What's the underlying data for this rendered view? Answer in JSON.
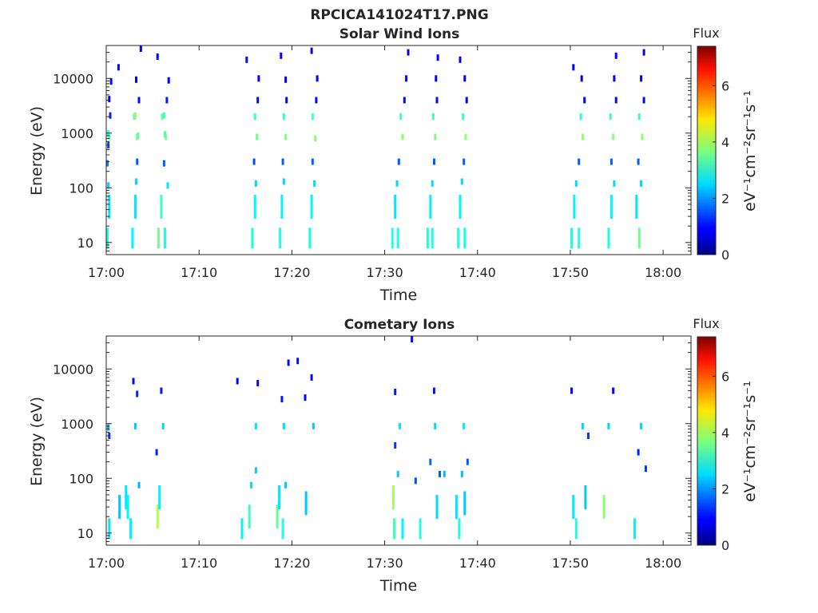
{
  "figure": {
    "main_title": "RPCICA141024T17.PNG"
  },
  "panels": [
    {
      "title": "Solar Wind Ions",
      "xlabel": "Time",
      "ylabel": "Energy (eV)",
      "colorbar_title": "Flux",
      "colorbar_unit": "eV⁻¹cm⁻²sr⁻¹s⁻¹"
    },
    {
      "title": "Cometary Ions",
      "xlabel": "Time",
      "ylabel": "Energy (eV)",
      "colorbar_title": "Flux",
      "colorbar_unit": "eV⁻¹cm⁻²sr⁻¹s⁻¹"
    }
  ],
  "chart_data": [
    {
      "type": "heatmap",
      "title": "Solar Wind Ions",
      "xlabel": "Time",
      "ylabel": "Energy (eV)",
      "x_range_minutes_after_1700": [
        0,
        63
      ],
      "y_range_eV": [
        6,
        40000
      ],
      "y_scale": "log",
      "x_ticks": [
        "17:00",
        "17:10",
        "17:20",
        "17:30",
        "17:40",
        "17:50",
        "18:00"
      ],
      "y_ticks": [
        "10",
        "100",
        "1000",
        "10000"
      ],
      "colorbar": {
        "label": "Flux",
        "unit": "eV⁻¹cm⁻²sr⁻¹s⁻¹",
        "range": [
          0,
          7.4
        ],
        "ticks": [
          "0",
          "2",
          "4",
          "6"
        ],
        "colormap": "jet"
      },
      "grid": false,
      "cells": [
        {
          "t": 0.0,
          "e": 12,
          "v": 3.0
        },
        {
          "t": 0.2,
          "e": 45,
          "v": 2.6
        },
        {
          "t": 0.1,
          "e": 110,
          "v": 2.4
        },
        {
          "t": 0.0,
          "e": 280,
          "v": 1.8
        },
        {
          "t": 0.1,
          "e": 600,
          "v": 1.5
        },
        {
          "t": 0.2,
          "e": 850,
          "v": 3.4
        },
        {
          "t": 0.1,
          "e": 1000,
          "v": 3.0
        },
        {
          "t": 0.3,
          "e": 2100,
          "v": 1.2
        },
        {
          "t": 0.2,
          "e": 4200,
          "v": 1.0
        },
        {
          "t": 0.4,
          "e": 8800,
          "v": 0.9
        },
        {
          "t": 1.2,
          "e": 16000,
          "v": 0.9
        },
        {
          "t": 2.7,
          "e": 12,
          "v": 2.7
        },
        {
          "t": 3.0,
          "e": 45,
          "v": 2.6
        },
        {
          "t": 3.1,
          "e": 130,
          "v": 2.5
        },
        {
          "t": 3.2,
          "e": 300,
          "v": 1.6
        },
        {
          "t": 3.2,
          "e": 850,
          "v": 3.6
        },
        {
          "t": 3.3,
          "e": 900,
          "v": 3.5
        },
        {
          "t": 2.9,
          "e": 2000,
          "v": 3.3
        },
        {
          "t": 3.0,
          "e": 2100,
          "v": 3.8
        },
        {
          "t": 3.4,
          "e": 4000,
          "v": 1.0
        },
        {
          "t": 3.1,
          "e": 9500,
          "v": 0.9
        },
        {
          "t": 3.6,
          "e": 35000,
          "v": 0.9
        },
        {
          "t": 5.5,
          "e": 12,
          "v": 3.6
        },
        {
          "t": 6.2,
          "e": 12,
          "v": 3.0
        },
        {
          "t": 5.8,
          "e": 45,
          "v": 3.2
        },
        {
          "t": 6.5,
          "e": 110,
          "v": 2.6
        },
        {
          "t": 6.1,
          "e": 280,
          "v": 1.6
        },
        {
          "t": 6.3,
          "e": 850,
          "v": 3.7
        },
        {
          "t": 6.2,
          "e": 950,
          "v": 3.4
        },
        {
          "t": 5.9,
          "e": 2000,
          "v": 3.5
        },
        {
          "t": 6.1,
          "e": 2100,
          "v": 3.2
        },
        {
          "t": 6.4,
          "e": 4000,
          "v": 1.1
        },
        {
          "t": 6.6,
          "e": 9200,
          "v": 0.9
        },
        {
          "t": 5.4,
          "e": 25000,
          "v": 1.0
        },
        {
          "t": 15.6,
          "e": 12,
          "v": 3.0
        },
        {
          "t": 15.9,
          "e": 45,
          "v": 2.7
        },
        {
          "t": 16.0,
          "e": 120,
          "v": 2.5
        },
        {
          "t": 15.8,
          "e": 300,
          "v": 1.5
        },
        {
          "t": 16.1,
          "e": 850,
          "v": 3.6
        },
        {
          "t": 15.9,
          "e": 2000,
          "v": 3.2
        },
        {
          "t": 16.2,
          "e": 4000,
          "v": 1.0
        },
        {
          "t": 16.3,
          "e": 10000,
          "v": 0.9
        },
        {
          "t": 15.0,
          "e": 22000,
          "v": 1.0
        },
        {
          "t": 18.6,
          "e": 12,
          "v": 3.0
        },
        {
          "t": 18.8,
          "e": 45,
          "v": 2.7
        },
        {
          "t": 19.0,
          "e": 130,
          "v": 2.5
        },
        {
          "t": 18.9,
          "e": 300,
          "v": 1.6
        },
        {
          "t": 19.2,
          "e": 850,
          "v": 3.7
        },
        {
          "t": 19.0,
          "e": 2000,
          "v": 3.1
        },
        {
          "t": 19.3,
          "e": 4000,
          "v": 1.0
        },
        {
          "t": 19.2,
          "e": 9500,
          "v": 0.9
        },
        {
          "t": 18.7,
          "e": 26000,
          "v": 0.9
        },
        {
          "t": 21.8,
          "e": 12,
          "v": 2.9
        },
        {
          "t": 22.0,
          "e": 45,
          "v": 2.7
        },
        {
          "t": 22.3,
          "e": 120,
          "v": 2.5
        },
        {
          "t": 22.1,
          "e": 300,
          "v": 1.6
        },
        {
          "t": 22.4,
          "e": 800,
          "v": 3.8
        },
        {
          "t": 22.1,
          "e": 2000,
          "v": 3.2
        },
        {
          "t": 22.5,
          "e": 4000,
          "v": 1.0
        },
        {
          "t": 22.6,
          "e": 10000,
          "v": 0.9
        },
        {
          "t": 22.0,
          "e": 32000,
          "v": 0.9
        },
        {
          "t": 30.7,
          "e": 12,
          "v": 3.0
        },
        {
          "t": 31.3,
          "e": 12,
          "v": 3.0
        },
        {
          "t": 31.0,
          "e": 45,
          "v": 2.6
        },
        {
          "t": 31.2,
          "e": 120,
          "v": 2.5
        },
        {
          "t": 31.4,
          "e": 300,
          "v": 1.6
        },
        {
          "t": 31.8,
          "e": 850,
          "v": 3.8
        },
        {
          "t": 31.6,
          "e": 2000,
          "v": 3.2
        },
        {
          "t": 32.0,
          "e": 4000,
          "v": 1.0
        },
        {
          "t": 32.2,
          "e": 10000,
          "v": 0.9
        },
        {
          "t": 32.4,
          "e": 30000,
          "v": 0.9
        },
        {
          "t": 34.5,
          "e": 12,
          "v": 3.0
        },
        {
          "t": 35.0,
          "e": 12,
          "v": 3.0
        },
        {
          "t": 34.8,
          "e": 45,
          "v": 2.7
        },
        {
          "t": 35.0,
          "e": 120,
          "v": 2.5
        },
        {
          "t": 35.2,
          "e": 300,
          "v": 1.6
        },
        {
          "t": 35.3,
          "e": 850,
          "v": 3.7
        },
        {
          "t": 35.1,
          "e": 2000,
          "v": 3.2
        },
        {
          "t": 35.5,
          "e": 4000,
          "v": 1.0
        },
        {
          "t": 35.4,
          "e": 10000,
          "v": 0.9
        },
        {
          "t": 35.6,
          "e": 24000,
          "v": 0.9
        },
        {
          "t": 37.8,
          "e": 12,
          "v": 3.0
        },
        {
          "t": 38.5,
          "e": 12,
          "v": 2.9
        },
        {
          "t": 38.0,
          "e": 45,
          "v": 2.7
        },
        {
          "t": 38.2,
          "e": 130,
          "v": 2.5
        },
        {
          "t": 38.4,
          "e": 300,
          "v": 1.6
        },
        {
          "t": 38.6,
          "e": 850,
          "v": 3.8
        },
        {
          "t": 38.3,
          "e": 2000,
          "v": 3.2
        },
        {
          "t": 38.7,
          "e": 4000,
          "v": 1.0
        },
        {
          "t": 38.5,
          "e": 10000,
          "v": 0.9
        },
        {
          "t": 38.0,
          "e": 22000,
          "v": 0.9
        },
        {
          "t": 50.0,
          "e": 12,
          "v": 3.0
        },
        {
          "t": 50.8,
          "e": 12,
          "v": 3.0
        },
        {
          "t": 50.3,
          "e": 45,
          "v": 2.7
        },
        {
          "t": 50.5,
          "e": 120,
          "v": 2.5
        },
        {
          "t": 50.8,
          "e": 300,
          "v": 1.6
        },
        {
          "t": 51.2,
          "e": 850,
          "v": 3.8
        },
        {
          "t": 51.0,
          "e": 2000,
          "v": 3.1
        },
        {
          "t": 51.4,
          "e": 4000,
          "v": 1.0
        },
        {
          "t": 51.1,
          "e": 10000,
          "v": 0.9
        },
        {
          "t": 50.2,
          "e": 16000,
          "v": 0.9
        },
        {
          "t": 54.0,
          "e": 12,
          "v": 3.0
        },
        {
          "t": 54.3,
          "e": 45,
          "v": 2.7
        },
        {
          "t": 54.6,
          "e": 120,
          "v": 2.5
        },
        {
          "t": 54.3,
          "e": 300,
          "v": 1.6
        },
        {
          "t": 54.5,
          "e": 850,
          "v": 3.8
        },
        {
          "t": 54.2,
          "e": 2000,
          "v": 3.2
        },
        {
          "t": 54.8,
          "e": 4000,
          "v": 1.0
        },
        {
          "t": 54.6,
          "e": 10000,
          "v": 0.9
        },
        {
          "t": 54.8,
          "e": 26000,
          "v": 0.9
        },
        {
          "t": 57.3,
          "e": 12,
          "v": 3.6
        },
        {
          "t": 57.0,
          "e": 45,
          "v": 2.6
        },
        {
          "t": 57.5,
          "e": 120,
          "v": 2.5
        },
        {
          "t": 57.2,
          "e": 300,
          "v": 1.6
        },
        {
          "t": 57.6,
          "e": 850,
          "v": 3.8
        },
        {
          "t": 57.3,
          "e": 2000,
          "v": 3.2
        },
        {
          "t": 57.8,
          "e": 4000,
          "v": 1.0
        },
        {
          "t": 57.5,
          "e": 10000,
          "v": 0.9
        },
        {
          "t": 57.8,
          "e": 30000,
          "v": 0.9
        }
      ]
    },
    {
      "type": "heatmap",
      "title": "Cometary Ions",
      "xlabel": "Time",
      "ylabel": "Energy (eV)",
      "x_range_minutes_after_1700": [
        0,
        63
      ],
      "y_range_eV": [
        6,
        40000
      ],
      "y_scale": "log",
      "x_ticks": [
        "17:00",
        "17:10",
        "17:20",
        "17:30",
        "17:40",
        "17:50",
        "18:00"
      ],
      "y_ticks": [
        "10",
        "100",
        "1000",
        "10000"
      ],
      "colorbar": {
        "label": "Flux",
        "unit": "eV⁻¹cm⁻²sr⁻¹s⁻¹",
        "range": [
          0,
          7.4
        ],
        "ticks": [
          "0",
          "2",
          "4",
          "6"
        ],
        "colormap": "jet"
      },
      "grid": false,
      "cells": [
        {
          "t": 0.2,
          "e": 12,
          "v": 2.6
        },
        {
          "t": 0.1,
          "e": 850,
          "v": 2.2
        },
        {
          "t": 0.2,
          "e": 600,
          "v": 1.3
        },
        {
          "t": 1.3,
          "e": 30,
          "v": 2.4
        },
        {
          "t": 2.0,
          "e": 45,
          "v": 2.6
        },
        {
          "t": 2.2,
          "e": 30,
          "v": 2.7
        },
        {
          "t": 2.5,
          "e": 12,
          "v": 2.7
        },
        {
          "t": 3.0,
          "e": 900,
          "v": 2.4
        },
        {
          "t": 3.2,
          "e": 3500,
          "v": 1.2
        },
        {
          "t": 2.8,
          "e": 6000,
          "v": 1.0
        },
        {
          "t": 3.4,
          "e": 75,
          "v": 2.2
        },
        {
          "t": 5.4,
          "e": 20,
          "v": 4.1
        },
        {
          "t": 5.6,
          "e": 45,
          "v": 2.7
        },
        {
          "t": 5.3,
          "e": 300,
          "v": 1.2
        },
        {
          "t": 6.0,
          "e": 900,
          "v": 2.5
        },
        {
          "t": 5.8,
          "e": 4000,
          "v": 1.1
        },
        {
          "t": 14.0,
          "e": 6000,
          "v": 1.0
        },
        {
          "t": 14.5,
          "e": 12,
          "v": 2.7
        },
        {
          "t": 15.3,
          "e": 20,
          "v": 3.2
        },
        {
          "t": 15.5,
          "e": 75,
          "v": 2.5
        },
        {
          "t": 16.0,
          "e": 900,
          "v": 2.6
        },
        {
          "t": 16.0,
          "e": 140,
          "v": 2.4
        },
        {
          "t": 16.2,
          "e": 5500,
          "v": 1.0
        },
        {
          "t": 18.3,
          "e": 20,
          "v": 3.5
        },
        {
          "t": 18.5,
          "e": 45,
          "v": 2.6
        },
        {
          "t": 18.9,
          "e": 12,
          "v": 3.0
        },
        {
          "t": 19.0,
          "e": 900,
          "v": 2.5
        },
        {
          "t": 19.2,
          "e": 75,
          "v": 2.4
        },
        {
          "t": 19.5,
          "e": 13000,
          "v": 1.0
        },
        {
          "t": 18.8,
          "e": 2800,
          "v": 1.1
        },
        {
          "t": 20.5,
          "e": 14000,
          "v": 1.0
        },
        {
          "t": 21.3,
          "e": 3000,
          "v": 1.0
        },
        {
          "t": 22.2,
          "e": 900,
          "v": 2.4
        },
        {
          "t": 22.0,
          "e": 7000,
          "v": 1.0
        },
        {
          "t": 21.4,
          "e": 35,
          "v": 2.4
        },
        {
          "t": 30.8,
          "e": 45,
          "v": 3.9
        },
        {
          "t": 30.9,
          "e": 12,
          "v": 3.2
        },
        {
          "t": 31.3,
          "e": 120,
          "v": 2.4
        },
        {
          "t": 31.8,
          "e": 12,
          "v": 2.7
        },
        {
          "t": 31.5,
          "e": 900,
          "v": 2.6
        },
        {
          "t": 31.0,
          "e": 3800,
          "v": 1.1
        },
        {
          "t": 31.0,
          "e": 400,
          "v": 1.3
        },
        {
          "t": 32.8,
          "e": 38000,
          "v": 1.0
        },
        {
          "t": 33.7,
          "e": 12,
          "v": 3.0
        },
        {
          "t": 33.2,
          "e": 90,
          "v": 1.5
        },
        {
          "t": 34.8,
          "e": 200,
          "v": 1.7
        },
        {
          "t": 35.3,
          "e": 900,
          "v": 2.5
        },
        {
          "t": 35.5,
          "e": 30,
          "v": 2.5
        },
        {
          "t": 35.8,
          "e": 120,
          "v": 1.6
        },
        {
          "t": 36.3,
          "e": 120,
          "v": 2.3
        },
        {
          "t": 35.2,
          "e": 4000,
          "v": 1.1
        },
        {
          "t": 37.6,
          "e": 30,
          "v": 2.6
        },
        {
          "t": 37.9,
          "e": 12,
          "v": 3.0
        },
        {
          "t": 38.4,
          "e": 900,
          "v": 2.6
        },
        {
          "t": 38.2,
          "e": 120,
          "v": 2.3
        },
        {
          "t": 38.8,
          "e": 200,
          "v": 1.6
        },
        {
          "t": 38.5,
          "e": 35,
          "v": 2.4
        },
        {
          "t": 50.0,
          "e": 4000,
          "v": 1.0
        },
        {
          "t": 50.2,
          "e": 30,
          "v": 2.6
        },
        {
          "t": 50.5,
          "e": 12,
          "v": 3.0
        },
        {
          "t": 51.2,
          "e": 900,
          "v": 2.5
        },
        {
          "t": 51.5,
          "e": 45,
          "v": 2.4
        },
        {
          "t": 51.8,
          "e": 600,
          "v": 1.3
        },
        {
          "t": 53.5,
          "e": 30,
          "v": 3.8
        },
        {
          "t": 54.0,
          "e": 900,
          "v": 2.5
        },
        {
          "t": 54.5,
          "e": 4000,
          "v": 1.0
        },
        {
          "t": 56.8,
          "e": 12,
          "v": 2.7
        },
        {
          "t": 57.5,
          "e": 900,
          "v": 2.5
        },
        {
          "t": 57.2,
          "e": 300,
          "v": 1.2
        },
        {
          "t": 58.0,
          "e": 150,
          "v": 1.3
        }
      ]
    }
  ]
}
